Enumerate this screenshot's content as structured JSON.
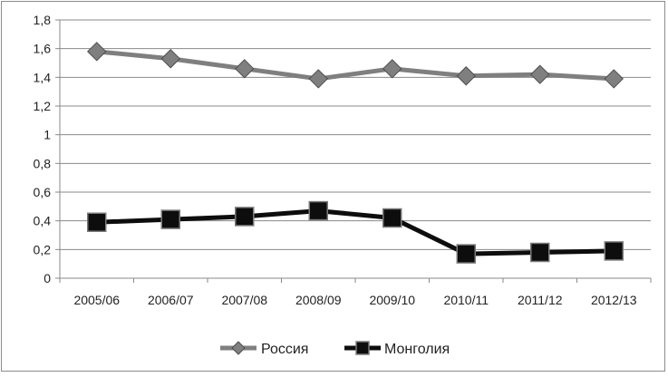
{
  "chart_data": {
    "type": "line",
    "categories": [
      "2005/06",
      "2006/07",
      "2007/08",
      "2008/09",
      "2009/10",
      "2010/11",
      "2011/12",
      "2012/13"
    ],
    "y_ticks": [
      "0",
      "0,2",
      "0,4",
      "0,6",
      "0,8",
      "1",
      "1,2",
      "1,4",
      "1,6",
      "1,8"
    ],
    "ylim": [
      0,
      1.8
    ],
    "grid": true,
    "legend_position": "bottom",
    "series": [
      {
        "name": "Россия",
        "values": [
          1.58,
          1.53,
          1.46,
          1.39,
          1.46,
          1.41,
          1.42,
          1.39
        ],
        "color": "#7f7f7f",
        "marker": "diamond"
      },
      {
        "name": "Монголия",
        "values": [
          0.39,
          0.41,
          0.43,
          0.47,
          0.42,
          0.17,
          0.18,
          0.19
        ],
        "color": "#0d0d0d",
        "marker": "square"
      }
    ]
  }
}
